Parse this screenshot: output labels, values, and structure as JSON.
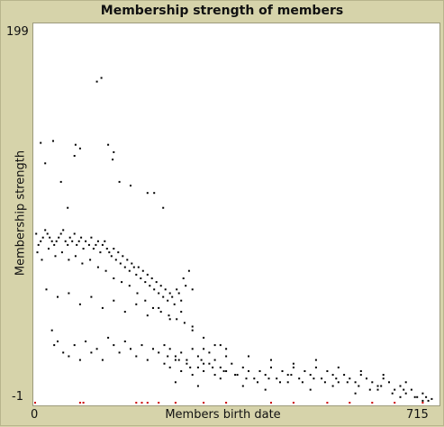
{
  "chart_data": {
    "type": "scatter",
    "title": "Membership strength of members",
    "xlabel": "Members birth date",
    "ylabel": "Membership strength",
    "xlim": [
      0,
      715
    ],
    "ylim": [
      -1,
      199
    ],
    "x_ticks": [
      "0",
      "715"
    ],
    "y_ticks": [
      "199",
      "-1"
    ],
    "series": [
      {
        "color": "#000000",
        "points": [
          [
            110,
            172
          ],
          [
            118,
            174
          ],
          [
            10,
            139
          ],
          [
            32,
            140
          ],
          [
            72,
            138
          ],
          [
            130,
            138
          ],
          [
            18,
            128
          ],
          [
            70,
            132
          ],
          [
            80,
            136
          ],
          [
            138,
            130
          ],
          [
            140,
            134
          ],
          [
            46,
            118
          ],
          [
            150,
            118
          ],
          [
            170,
            116
          ],
          [
            200,
            112
          ],
          [
            212,
            112
          ],
          [
            58,
            104
          ],
          [
            228,
            104
          ],
          [
            2,
            90
          ],
          [
            6,
            84
          ],
          [
            10,
            86
          ],
          [
            14,
            88
          ],
          [
            18,
            92
          ],
          [
            22,
            90
          ],
          [
            26,
            88
          ],
          [
            30,
            86
          ],
          [
            34,
            84
          ],
          [
            38,
            86
          ],
          [
            42,
            88
          ],
          [
            46,
            90
          ],
          [
            50,
            92
          ],
          [
            54,
            86
          ],
          [
            58,
            84
          ],
          [
            62,
            88
          ],
          [
            66,
            86
          ],
          [
            70,
            90
          ],
          [
            74,
            84
          ],
          [
            78,
            86
          ],
          [
            82,
            88
          ],
          [
            86,
            82
          ],
          [
            90,
            86
          ],
          [
            96,
            84
          ],
          [
            100,
            88
          ],
          [
            104,
            82
          ],
          [
            108,
            84
          ],
          [
            112,
            86
          ],
          [
            116,
            80
          ],
          [
            120,
            84
          ],
          [
            124,
            86
          ],
          [
            128,
            82
          ],
          [
            132,
            80
          ],
          [
            136,
            78
          ],
          [
            140,
            82
          ],
          [
            144,
            76
          ],
          [
            148,
            80
          ],
          [
            152,
            74
          ],
          [
            156,
            78
          ],
          [
            160,
            72
          ],
          [
            164,
            76
          ],
          [
            168,
            70
          ],
          [
            172,
            74
          ],
          [
            176,
            72
          ],
          [
            180,
            68
          ],
          [
            184,
            72
          ],
          [
            188,
            66
          ],
          [
            192,
            70
          ],
          [
            196,
            64
          ],
          [
            200,
            68
          ],
          [
            204,
            62
          ],
          [
            208,
            66
          ],
          [
            212,
            60
          ],
          [
            216,
            64
          ],
          [
            220,
            58
          ],
          [
            224,
            62
          ],
          [
            228,
            56
          ],
          [
            232,
            60
          ],
          [
            236,
            54
          ],
          [
            240,
            58
          ],
          [
            244,
            56
          ],
          [
            248,
            52
          ],
          [
            252,
            60
          ],
          [
            256,
            58
          ],
          [
            260,
            54
          ],
          [
            264,
            66
          ],
          [
            268,
            62
          ],
          [
            274,
            70
          ],
          [
            280,
            60
          ],
          [
            4,
            80
          ],
          [
            12,
            76
          ],
          [
            24,
            82
          ],
          [
            36,
            78
          ],
          [
            48,
            80
          ],
          [
            60,
            76
          ],
          [
            72,
            78
          ],
          [
            84,
            74
          ],
          [
            98,
            76
          ],
          [
            112,
            72
          ],
          [
            126,
            70
          ],
          [
            140,
            66
          ],
          [
            154,
            64
          ],
          [
            168,
            62
          ],
          [
            182,
            58
          ],
          [
            196,
            54
          ],
          [
            210,
            50
          ],
          [
            224,
            48
          ],
          [
            238,
            46
          ],
          [
            252,
            44
          ],
          [
            266,
            42
          ],
          [
            280,
            40
          ],
          [
            20,
            60
          ],
          [
            40,
            56
          ],
          [
            60,
            58
          ],
          [
            80,
            52
          ],
          [
            100,
            56
          ],
          [
            120,
            50
          ],
          [
            140,
            54
          ],
          [
            160,
            48
          ],
          [
            180,
            52
          ],
          [
            200,
            46
          ],
          [
            220,
            50
          ],
          [
            240,
            44
          ],
          [
            260,
            48
          ],
          [
            280,
            38
          ],
          [
            300,
            34
          ],
          [
            320,
            30
          ],
          [
            30,
            38
          ],
          [
            34,
            30
          ],
          [
            40,
            32
          ],
          [
            50,
            26
          ],
          [
            60,
            24
          ],
          [
            70,
            30
          ],
          [
            80,
            22
          ],
          [
            90,
            32
          ],
          [
            100,
            26
          ],
          [
            110,
            28
          ],
          [
            120,
            22
          ],
          [
            130,
            34
          ],
          [
            140,
            30
          ],
          [
            150,
            26
          ],
          [
            160,
            32
          ],
          [
            170,
            28
          ],
          [
            180,
            24
          ],
          [
            190,
            30
          ],
          [
            200,
            22
          ],
          [
            210,
            28
          ],
          [
            220,
            26
          ],
          [
            230,
            30
          ],
          [
            240,
            28
          ],
          [
            250,
            24
          ],
          [
            260,
            26
          ],
          [
            270,
            22
          ],
          [
            280,
            28
          ],
          [
            290,
            24
          ],
          [
            300,
            20
          ],
          [
            310,
            26
          ],
          [
            320,
            22
          ],
          [
            330,
            30
          ],
          [
            340,
            24
          ],
          [
            230,
            20
          ],
          [
            240,
            18
          ],
          [
            250,
            22
          ],
          [
            260,
            16
          ],
          [
            270,
            20
          ],
          [
            280,
            14
          ],
          [
            290,
            18
          ],
          [
            300,
            16
          ],
          [
            310,
            20
          ],
          [
            320,
            14
          ],
          [
            330,
            18
          ],
          [
            340,
            16
          ],
          [
            350,
            20
          ],
          [
            360,
            14
          ],
          [
            370,
            18
          ],
          [
            380,
            16
          ],
          [
            390,
            12
          ],
          [
            400,
            16
          ],
          [
            410,
            14
          ],
          [
            420,
            18
          ],
          [
            430,
            12
          ],
          [
            440,
            16
          ],
          [
            450,
            14
          ],
          [
            460,
            18
          ],
          [
            470,
            12
          ],
          [
            480,
            16
          ],
          [
            490,
            14
          ],
          [
            500,
            18
          ],
          [
            510,
            12
          ],
          [
            520,
            16
          ],
          [
            530,
            14
          ],
          [
            540,
            10
          ],
          [
            550,
            14
          ],
          [
            560,
            12
          ],
          [
            570,
            10
          ],
          [
            580,
            14
          ],
          [
            590,
            12
          ],
          [
            600,
            10
          ],
          [
            610,
            8
          ],
          [
            620,
            12
          ],
          [
            630,
            10
          ],
          [
            640,
            6
          ],
          [
            650,
            8
          ],
          [
            660,
            4
          ],
          [
            670,
            6
          ],
          [
            680,
            2
          ],
          [
            690,
            4
          ],
          [
            700,
            0
          ],
          [
            706,
            1
          ],
          [
            236,
            24
          ],
          [
            256,
            22
          ],
          [
            276,
            18
          ],
          [
            296,
            22
          ],
          [
            316,
            18
          ],
          [
            336,
            16
          ],
          [
            356,
            14
          ],
          [
            376,
            12
          ],
          [
            396,
            10
          ],
          [
            416,
            12
          ],
          [
            436,
            10
          ],
          [
            456,
            14
          ],
          [
            476,
            10
          ],
          [
            496,
            12
          ],
          [
            516,
            10
          ],
          [
            536,
            12
          ],
          [
            556,
            10
          ],
          [
            576,
            8
          ],
          [
            596,
            6
          ],
          [
            616,
            8
          ],
          [
            636,
            4
          ],
          [
            656,
            6
          ],
          [
            676,
            2
          ],
          [
            696,
            2
          ],
          [
            300,
            28
          ],
          [
            340,
            28
          ],
          [
            380,
            24
          ],
          [
            420,
            22
          ],
          [
            460,
            20
          ],
          [
            500,
            22
          ],
          [
            540,
            18
          ],
          [
            580,
            16
          ],
          [
            620,
            14
          ],
          [
            660,
            10
          ],
          [
            250,
            10
          ],
          [
            290,
            8
          ],
          [
            330,
            12
          ],
          [
            370,
            8
          ],
          [
            410,
            6
          ],
          [
            450,
            10
          ],
          [
            490,
            6
          ],
          [
            530,
            8
          ],
          [
            570,
            4
          ],
          [
            610,
            6
          ],
          [
            650,
            2
          ],
          [
            690,
            0
          ]
        ]
      },
      {
        "color": "#cc0000",
        "points": [
          [
            0,
            -1
          ],
          [
            80,
            -1
          ],
          [
            86,
            -1
          ],
          [
            180,
            -1
          ],
          [
            190,
            -1
          ],
          [
            200,
            -1
          ],
          [
            220,
            -1
          ],
          [
            250,
            -1
          ],
          [
            300,
            -1
          ],
          [
            340,
            -1
          ],
          [
            420,
            -1
          ],
          [
            460,
            -1
          ],
          [
            520,
            -1
          ],
          [
            560,
            -1
          ],
          [
            600,
            -1
          ],
          [
            640,
            -1
          ],
          [
            690,
            -1
          ]
        ]
      }
    ]
  }
}
